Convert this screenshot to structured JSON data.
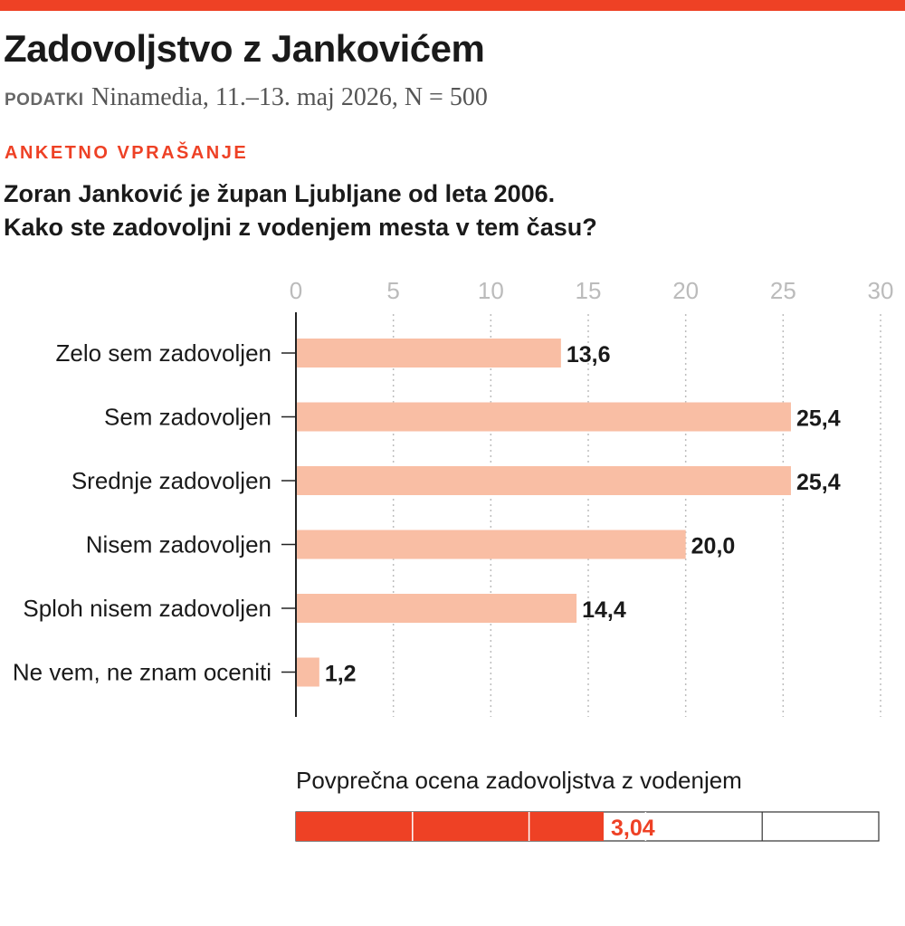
{
  "title": "Zadovoljstvo z Jankovićem",
  "source": {
    "label": "PODATKI",
    "text": "Ninamedia, 11.–13. maj 2026, N = 500"
  },
  "question_label": "ANKETNO VPRAŠANJE",
  "question_lines": [
    "Zoran Janković je župan Ljubljane od leta 2006.",
    "Kako ste zadovoljni z vodenjem mesta v tem času?"
  ],
  "chart_data": {
    "type": "bar",
    "orientation": "horizontal",
    "categories": [
      "Zelo sem zadovoljen",
      "Sem zadovoljen",
      "Srednje zadovoljen",
      "Nisem zadovoljen",
      "Sploh nisem zadovoljen",
      "Ne vem, ne znam oceniti"
    ],
    "values": [
      13.6,
      25.4,
      25.4,
      20.0,
      14.4,
      1.2
    ],
    "value_labels": [
      "13,6",
      "25,4",
      "25,4",
      "20,0",
      "14,4",
      "1,2"
    ],
    "xlim": [
      0,
      30
    ],
    "xticks": [
      0,
      5,
      10,
      15,
      20,
      25,
      30
    ],
    "grid": true,
    "bar_color": "#f9bea4",
    "tick_color": "#bbbbbb"
  },
  "average": {
    "title": "Povprečna ocena zadovoljstva z vodenjem",
    "value": 3.04,
    "value_label": "3,04",
    "scale_max": 5,
    "color": "#ee4125"
  }
}
